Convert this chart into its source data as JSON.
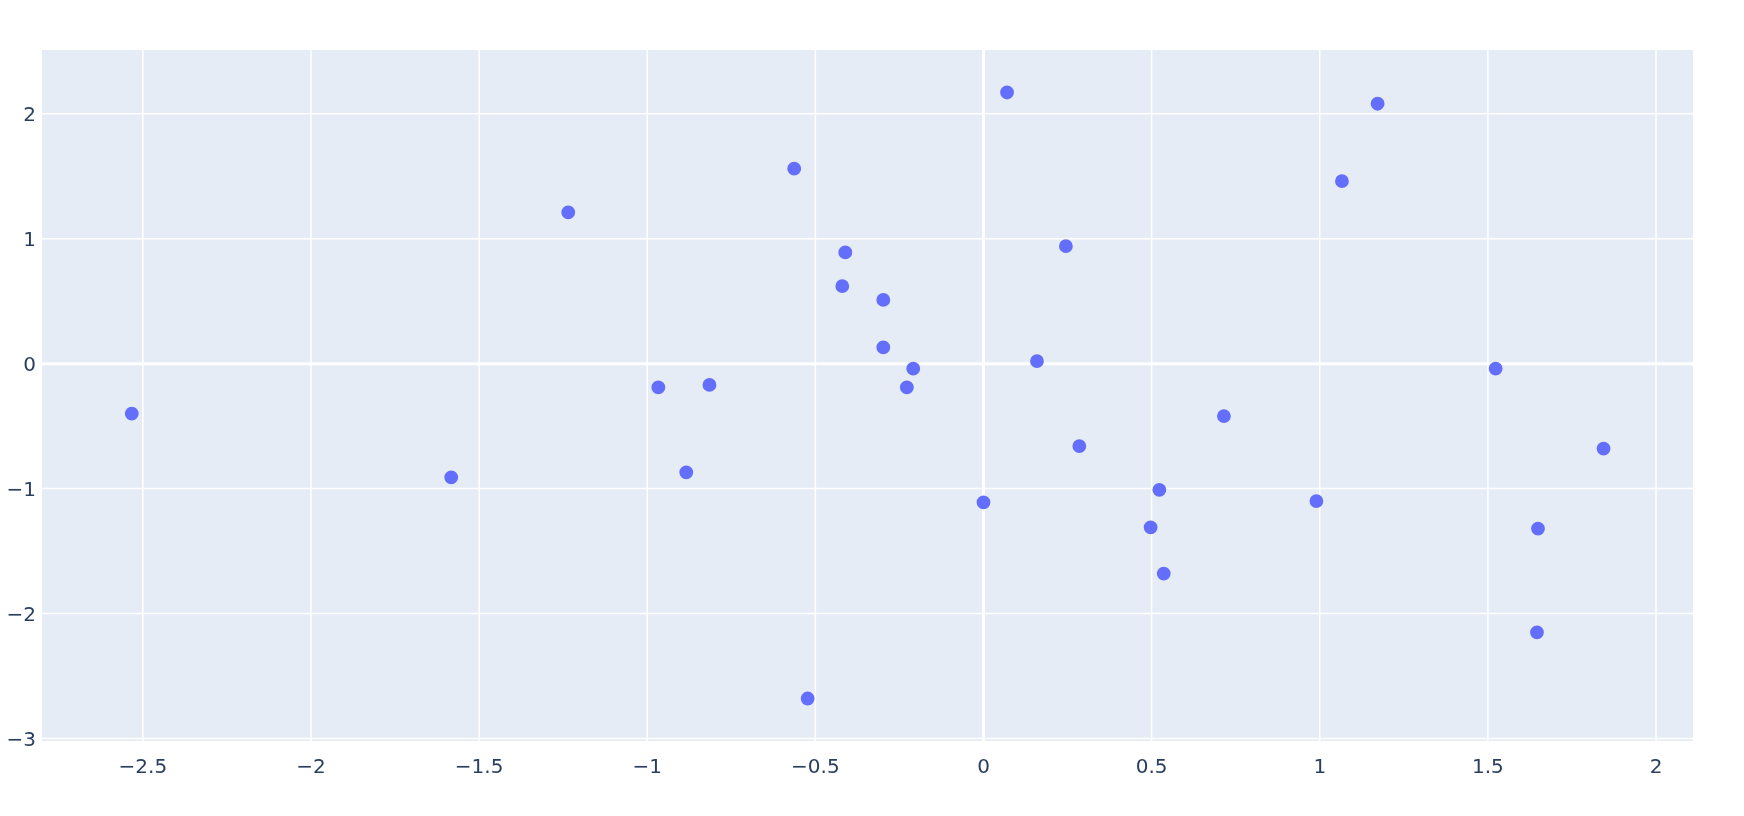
{
  "chart_data": {
    "type": "scatter",
    "color": "#636efa",
    "marker": "circle",
    "grid": true,
    "x": [
      -2.533,
      -1.583,
      -1.235,
      -0.967,
      -0.884,
      -0.815,
      -0.563,
      -0.523,
      -0.42,
      -0.411,
      -0.298,
      -0.298,
      -0.228,
      -0.209,
      0.0,
      0.07,
      0.159,
      0.245,
      0.285,
      0.497,
      0.523,
      0.536,
      0.715,
      0.99,
      1.066,
      1.172,
      1.523,
      1.649,
      1.646,
      1.844
    ],
    "values": [
      -0.4,
      -0.91,
      1.21,
      -0.19,
      -0.87,
      -0.17,
      1.56,
      -2.68,
      0.62,
      0.89,
      0.51,
      0.13,
      -0.19,
      -0.04,
      -1.11,
      2.17,
      0.02,
      0.94,
      -0.66,
      -1.31,
      -1.01,
      -1.68,
      -0.42,
      -1.1,
      1.46,
      2.08,
      -0.04,
      -1.32,
      -2.15,
      -0.68
    ],
    "xlim": [
      -2.8,
      2.11
    ],
    "ylim": [
      -3.02,
      2.51
    ],
    "xticks": [
      {
        "value": -2.5,
        "label": "−2.5"
      },
      {
        "value": -2,
        "label": "−2"
      },
      {
        "value": -1.5,
        "label": "−1.5"
      },
      {
        "value": -1,
        "label": "−1"
      },
      {
        "value": -0.5,
        "label": "−0.5"
      },
      0,
      0.5,
      1,
      1.5,
      2
    ],
    "yticks": [
      {
        "value": -3,
        "label": "−3"
      },
      {
        "value": -2,
        "label": "−2"
      },
      {
        "value": -1,
        "label": "−1"
      },
      0,
      1,
      2
    ]
  }
}
